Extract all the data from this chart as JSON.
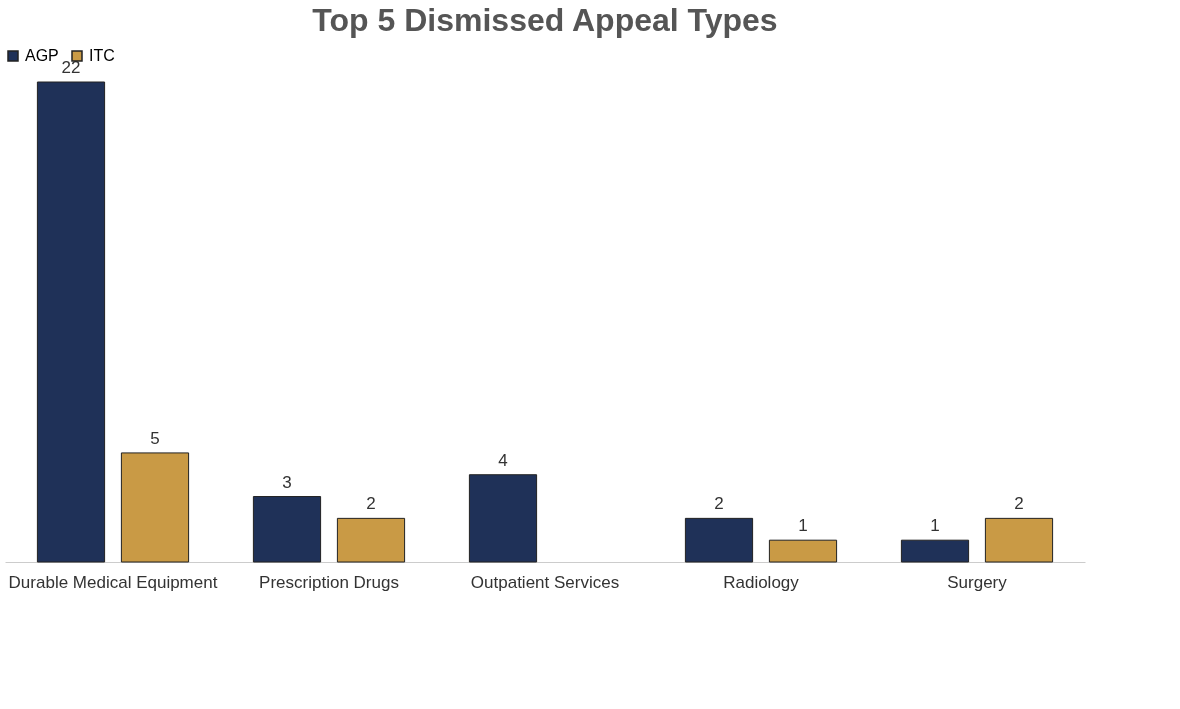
{
  "chart_data": {
    "type": "bar",
    "title": "Top 5 Dismissed Appeal Types",
    "categories": [
      "Durable Medical Equipment",
      "Prescription Drugs",
      "Outpatient Services",
      "Radiology",
      "Surgery"
    ],
    "series": [
      {
        "name": "AGP",
        "color": "#1f3158",
        "values": [
          22,
          3,
          4,
          2,
          1
        ]
      },
      {
        "name": "ITC",
        "color": "#c99a45",
        "values": [
          5,
          2,
          null,
          1,
          2
        ]
      }
    ],
    "data_labels": true,
    "legend": "top",
    "grid": false
  }
}
